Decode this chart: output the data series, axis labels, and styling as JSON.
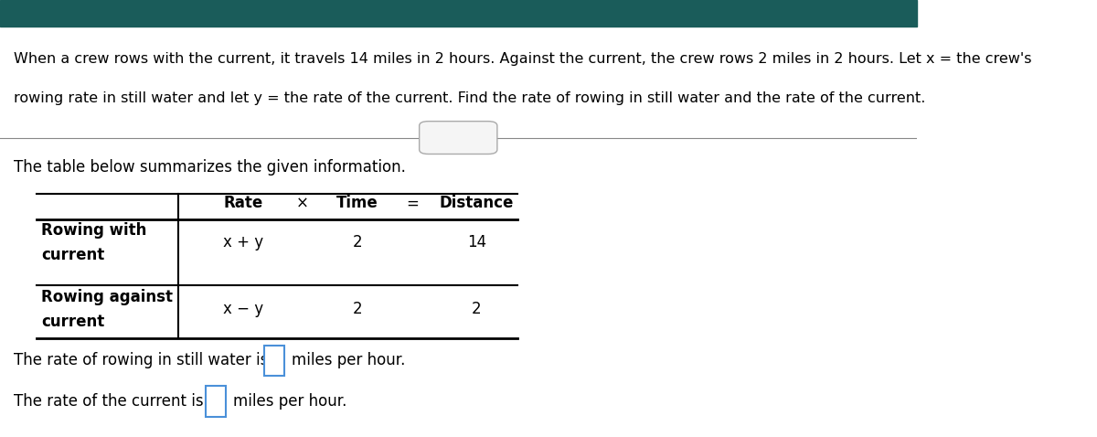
{
  "bg_color": "#ffffff",
  "header_bar_color": "#1a5c5a",
  "header_bar_height": 0.06,
  "intro_line1": "When a crew rows with the current, it travels 14 miles in 2 hours. Against the current, the crew rows 2 miles in 2 hours. Let x = the crew's",
  "intro_line2": "rowing rate in still water and let y = the rate of the current. Find the rate of rowing in still water and the rate of the current.",
  "divider_button_text": ". . . . .",
  "table_intro": "The table below summarizes the given information.",
  "table_row1_label1": "Rowing with",
  "table_row1_label2": "current",
  "table_row1_rate": "x + y",
  "table_row1_time": "2",
  "table_row1_dist": "14",
  "table_row2_label1": "Rowing against",
  "table_row2_label2": "current",
  "table_row2_rate": "x − y",
  "table_row2_time": "2",
  "table_row2_dist": "2",
  "col_header_rate": "Rate",
  "col_header_x": "×",
  "col_header_time": "Time",
  "col_header_eq": "=",
  "col_header_dist": "Distance",
  "answer_text1a": "The rate of rowing in still water is",
  "answer_text1b": "miles per hour.",
  "answer_text2a": "The rate of the current is",
  "answer_text2b": "miles per hour.",
  "box_color": "#4a90d9",
  "text_color": "#000000",
  "separator_color": "#888888",
  "table_line_color": "#000000",
  "font_size_intro": 11.5,
  "font_size_table": 12,
  "font_size_answer": 12
}
